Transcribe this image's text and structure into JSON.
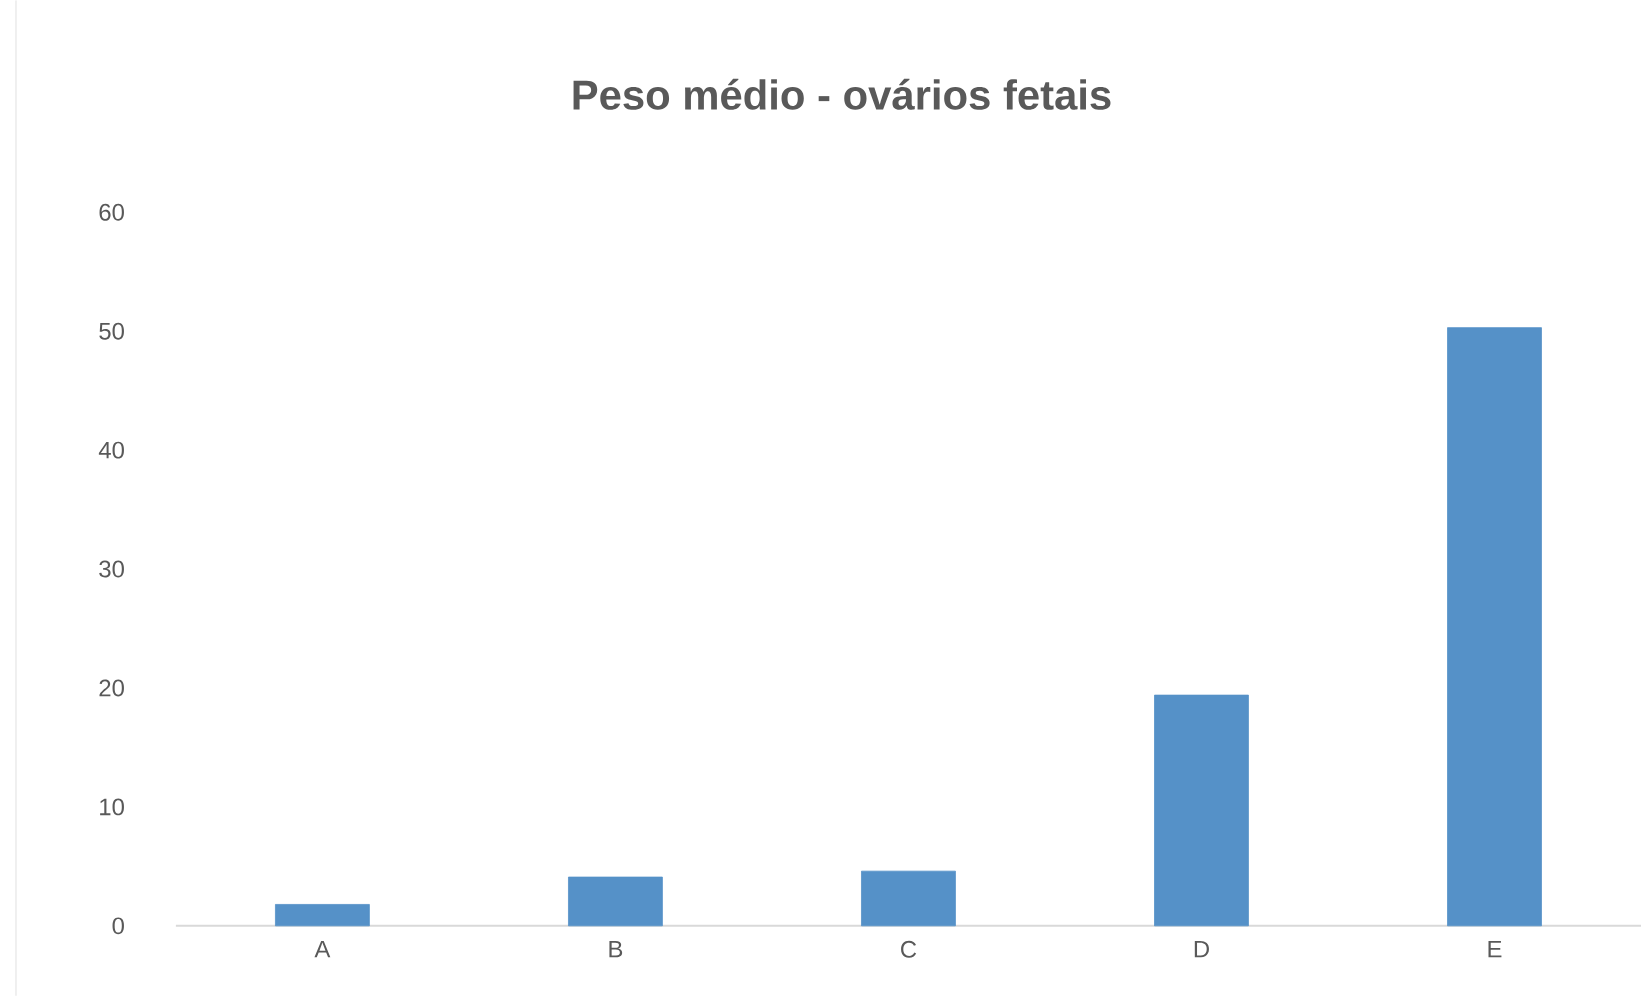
{
  "chart_data": {
    "type": "bar",
    "title": "Peso médio - ovários fetais",
    "categories": [
      "A",
      "B",
      "C",
      "D",
      "E"
    ],
    "values": [
      1.8,
      4.1,
      4.6,
      19.4,
      50.3
    ],
    "color": "#5591c8",
    "ylim": [
      0,
      60
    ],
    "yticks": [
      0,
      10,
      20,
      30,
      40,
      50,
      60
    ]
  }
}
